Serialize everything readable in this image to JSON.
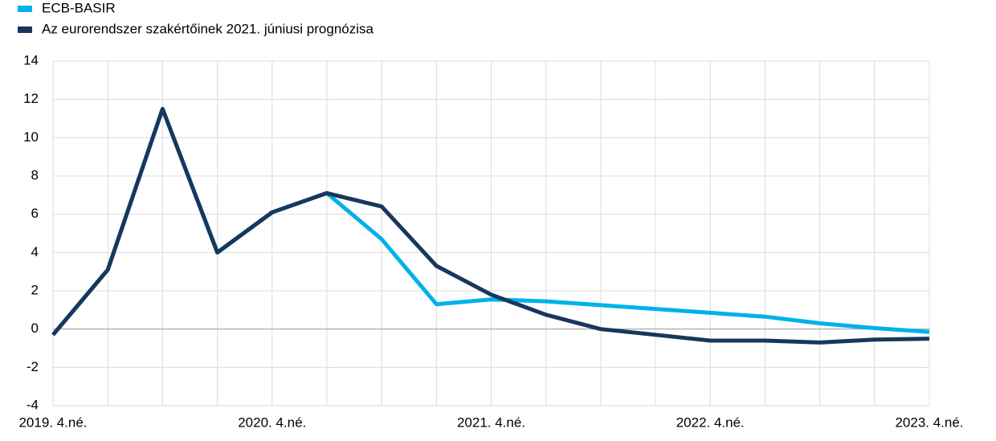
{
  "chart_data": {
    "type": "line",
    "categories": [
      "2019. 4.né.",
      null,
      null,
      null,
      "2020. 4.né.",
      null,
      null,
      null,
      "2021. 4.né.",
      null,
      null,
      null,
      "2022. 4.né.",
      null,
      null,
      null,
      "2023. 4.né."
    ],
    "series": [
      {
        "name": "ECB-BASIR",
        "color": "#00b1ea",
        "values": [
          -0.3,
          3.1,
          11.5,
          4.0,
          6.1,
          7.1,
          4.7,
          1.3,
          1.55,
          1.45,
          1.25,
          1.05,
          0.85,
          0.65,
          0.3,
          0.05,
          -0.15
        ]
      },
      {
        "name": "Az eurorendszer szakértőinek 2021. júniusi prognózisa",
        "color": "#17375e",
        "values": [
          -0.3,
          3.1,
          11.5,
          4.0,
          6.1,
          7.1,
          6.4,
          3.3,
          1.8,
          0.75,
          0.0,
          -0.3,
          -0.6,
          -0.6,
          -0.7,
          -0.55,
          -0.5
        ]
      }
    ],
    "ylim": [
      -4,
      14
    ],
    "yticks": [
      -4,
      -2,
      0,
      2,
      4,
      6,
      8,
      10,
      12,
      14
    ],
    "grid": true,
    "legend": "top-left"
  }
}
